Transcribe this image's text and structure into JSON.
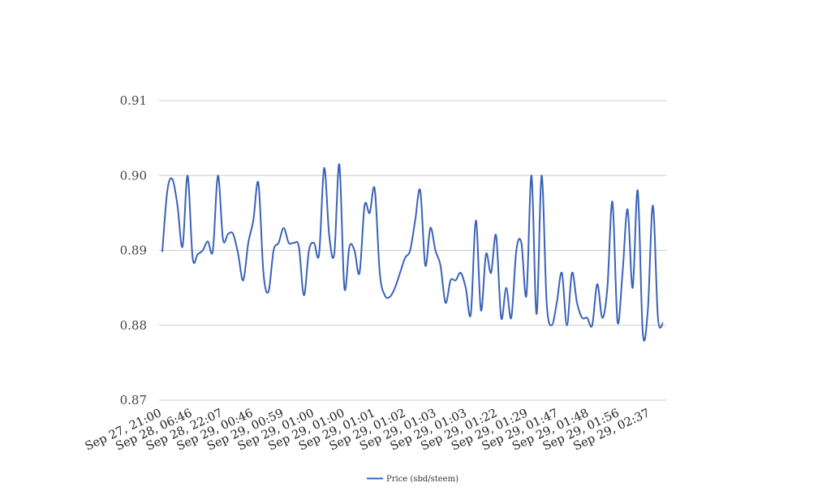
{
  "chart_data": {
    "type": "line",
    "title": "",
    "xlabel": "",
    "ylabel": "",
    "ylim": [
      0.87,
      0.91
    ],
    "y_ticks": [
      "0.87",
      "0.88",
      "0.89",
      "0.90",
      "0.91"
    ],
    "y_tick_values": [
      0.87,
      0.88,
      0.89,
      0.9,
      0.91
    ],
    "grid": true,
    "legend_position": "bottom",
    "x_tick_labels": [
      "Sep 27, 21:00",
      "Sep 28, 06:46",
      "Sep 28, 22:07",
      "Sep 29, 00:46",
      "Sep 29, 00:59",
      "Sep 29, 01:00",
      "Sep 29, 01:00",
      "Sep 29, 01:01",
      "Sep 29, 01:02",
      "Sep 29, 01:03",
      "Sep 29, 01:03",
      "Sep 29, 01:22",
      "Sep 29, 01:29",
      "Sep 29, 01:47",
      "Sep 29, 01:48",
      "Sep 29, 01:56",
      "Sep 29, 02:37"
    ],
    "series": [
      {
        "name": "Price (sbd/steem)",
        "color": "#3a63b8",
        "values": [
          0.8898,
          0.898,
          0.8995,
          0.896,
          0.8905,
          0.9,
          0.889,
          0.8895,
          0.89,
          0.8912,
          0.89,
          0.9,
          0.8915,
          0.8922,
          0.8922,
          0.8895,
          0.886,
          0.891,
          0.894,
          0.899,
          0.887,
          0.8845,
          0.89,
          0.891,
          0.893,
          0.891,
          0.891,
          0.8905,
          0.884,
          0.89,
          0.891,
          0.8895,
          0.901,
          0.892,
          0.8895,
          0.9015,
          0.885,
          0.8905,
          0.89,
          0.887,
          0.896,
          0.895,
          0.8982,
          0.887,
          0.884,
          0.8838,
          0.885,
          0.887,
          0.889,
          0.89,
          0.894,
          0.898,
          0.888,
          0.893,
          0.89,
          0.888,
          0.883,
          0.886,
          0.886,
          0.887,
          0.885,
          0.8815,
          0.894,
          0.882,
          0.8895,
          0.887,
          0.892,
          0.881,
          0.885,
          0.881,
          0.89,
          0.891,
          0.884,
          0.9,
          0.8815,
          0.9,
          0.883,
          0.88,
          0.883,
          0.887,
          0.88,
          0.887,
          0.883,
          0.881,
          0.881,
          0.88,
          0.8855,
          0.881,
          0.885,
          0.8965,
          0.8805,
          0.887,
          0.8955,
          0.885,
          0.898,
          0.879,
          0.882,
          0.896,
          0.881,
          0.8803
        ]
      }
    ]
  }
}
